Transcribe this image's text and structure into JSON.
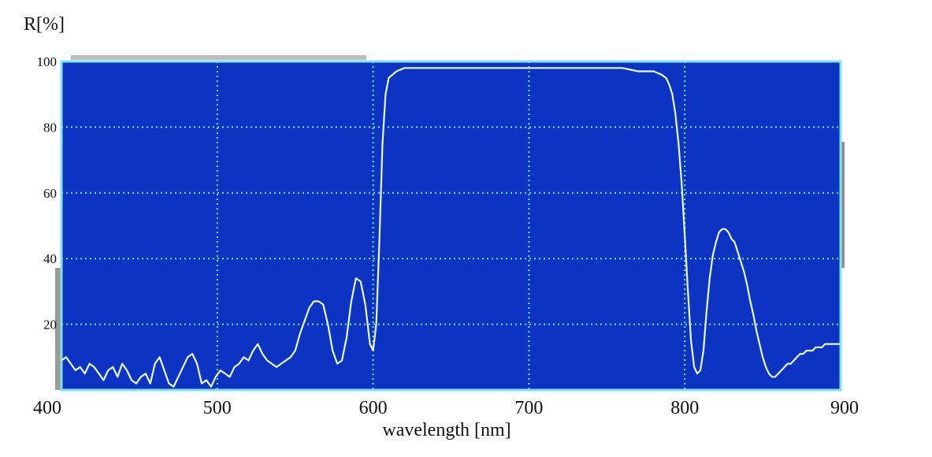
{
  "chart_data": {
    "type": "line",
    "title": "",
    "xlabel": "wavelength [nm]",
    "ylabel": "R[%]",
    "xlim": [
      400,
      900
    ],
    "ylim": [
      0,
      100
    ],
    "x_ticks": [
      "400",
      "500",
      "600",
      "700",
      "800",
      "900"
    ],
    "y_ticks": [
      "20",
      "40",
      "60",
      "80",
      "100"
    ],
    "grid": true,
    "colors": {
      "plot_background": "#0d33c2",
      "frame": "#7fe3e8",
      "grid": "#6fe9ee",
      "line": "#e8f8ff"
    },
    "series": [
      {
        "x": [
          400,
          403,
          406,
          409,
          412,
          415,
          418,
          421,
          424,
          427,
          430,
          433,
          436,
          439,
          442,
          445,
          448,
          451,
          454,
          457,
          460,
          463,
          466,
          469,
          472,
          475,
          478,
          481,
          484,
          487,
          490,
          493,
          496,
          499,
          502,
          505,
          508,
          511,
          514,
          517,
          520,
          523,
          526,
          529,
          532,
          535,
          538,
          541,
          544,
          547,
          550,
          553,
          556,
          559,
          562,
          565,
          568,
          571,
          574,
          577,
          580,
          583,
          586,
          589,
          592,
          595,
          598,
          600,
          602,
          604,
          606,
          608,
          610,
          615,
          620,
          625,
          630,
          640,
          650,
          660,
          670,
          680,
          690,
          700,
          710,
          720,
          730,
          740,
          750,
          760,
          770,
          780,
          785,
          788,
          790,
          792,
          794,
          796,
          798,
          800,
          802,
          804,
          806,
          808,
          810,
          812,
          814,
          816,
          818,
          820,
          822,
          824,
          826,
          828,
          830,
          832,
          834,
          836,
          838,
          840,
          842,
          844,
          846,
          848,
          850,
          852,
          854,
          856,
          858,
          860,
          862,
          864,
          866,
          868,
          870,
          872,
          874,
          876,
          878,
          880,
          882,
          884,
          886,
          888,
          890,
          892,
          894,
          896,
          898,
          900
        ],
        "y": [
          9,
          10,
          8,
          6,
          7,
          5,
          8,
          7,
          5,
          3,
          6,
          7,
          4,
          8,
          6,
          3,
          2,
          4,
          5,
          2,
          8,
          10,
          6,
          2,
          1,
          4,
          7,
          10,
          11,
          8,
          2,
          3,
          1,
          4,
          6,
          5,
          4,
          7,
          8,
          10,
          9,
          12,
          14,
          11,
          9,
          8,
          7,
          8,
          9,
          10,
          12,
          17,
          21,
          25,
          27,
          27,
          26,
          20,
          12,
          8,
          9,
          16,
          27,
          34,
          33,
          26,
          14,
          12,
          20,
          45,
          75,
          90,
          95,
          97,
          98,
          98,
          98,
          98,
          98,
          98,
          98,
          98,
          98,
          98,
          98,
          98,
          98,
          98,
          98,
          98,
          97,
          97,
          96,
          95,
          93,
          90,
          84,
          75,
          63,
          47,
          30,
          15,
          7,
          5,
          6,
          12,
          24,
          34,
          41,
          45,
          48,
          49,
          49,
          48,
          46,
          45,
          42,
          39,
          36,
          32,
          27,
          23,
          18,
          14,
          10,
          7,
          5,
          4,
          4,
          5,
          6,
          7,
          8,
          8,
          9,
          10,
          11,
          11,
          12,
          12,
          12,
          13,
          13,
          13,
          14,
          14,
          14,
          14,
          14,
          14
        ]
      }
    ]
  }
}
